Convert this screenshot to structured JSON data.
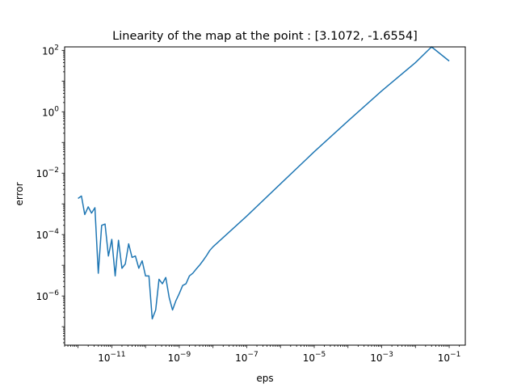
{
  "chart_data": {
    "type": "line",
    "title": "Linearity of the map at the point : [3.1072, -1.6554]",
    "xlabel": "eps",
    "ylabel": "error",
    "xscale": "log",
    "yscale": "log",
    "xlim": [
      4e-13,
      0.3
    ],
    "ylim": [
      2.5e-08,
      130
    ],
    "grid": false,
    "legend": "none",
    "line_color": "#1f77b4",
    "xticks": [
      {
        "exp": "-11",
        "value": 1e-11
      },
      {
        "exp": "-9",
        "value": 1e-09
      },
      {
        "exp": "-7",
        "value": 1e-07
      },
      {
        "exp": "-5",
        "value": 1e-05
      },
      {
        "exp": "-3",
        "value": 0.001
      },
      {
        "exp": "-1",
        "value": 0.1
      }
    ],
    "yticks": [
      {
        "exp": "-6",
        "value": 1e-06
      },
      {
        "exp": "-4",
        "value": 0.0001
      },
      {
        "exp": "-2",
        "value": 0.01
      },
      {
        "exp": "0",
        "value": 1
      },
      {
        "exp": "2",
        "value": 100
      }
    ],
    "series": [
      {
        "x": [
          1e-12,
          1.26e-12,
          1.58e-12,
          2e-12,
          2.51e-12,
          3.16e-12,
          3.98e-12,
          5.01e-12,
          6.31e-12,
          7.94e-12,
          1e-11,
          1.26e-11,
          1.58e-11,
          2e-11,
          2.51e-11,
          3.16e-11,
          3.98e-11,
          5.01e-11,
          6.31e-11,
          7.94e-11,
          1e-10,
          1.26e-10,
          1.58e-10,
          2e-10,
          2.51e-10,
          3.16e-10,
          3.98e-10,
          5.01e-10,
          6.31e-10,
          7.94e-10,
          1e-09,
          1.26e-09,
          1.58e-09,
          2e-09,
          2.51e-09,
          3.16e-09,
          3.98e-09,
          5.01e-09,
          6.31e-09,
          7.94e-09,
          1e-08,
          1e-07,
          1e-06,
          1e-05,
          0.0001,
          0.001,
          0.01,
          0.03,
          0.1
        ],
        "y": [
          0.0015,
          0.0018,
          0.00045,
          0.0008,
          0.0005,
          0.00075,
          5.5e-06,
          0.0002,
          0.00022,
          2e-05,
          7e-05,
          4.5e-06,
          6.5e-05,
          8e-06,
          1.1e-05,
          5e-05,
          1.8e-05,
          2e-05,
          8e-06,
          1.4e-05,
          4.5e-06,
          4.5e-06,
          1.8e-07,
          3.5e-07,
          3.5e-06,
          2.5e-06,
          4e-06,
          9e-07,
          3.5e-07,
          7e-07,
          1.2e-06,
          2.2e-06,
          2.5e-06,
          4.5e-06,
          5.5e-06,
          7.5e-06,
          1e-05,
          1.4e-05,
          2e-05,
          3e-05,
          4e-05,
          0.0004,
          0.0045,
          0.05,
          0.5,
          4.8,
          40,
          130,
          45
        ]
      }
    ]
  }
}
